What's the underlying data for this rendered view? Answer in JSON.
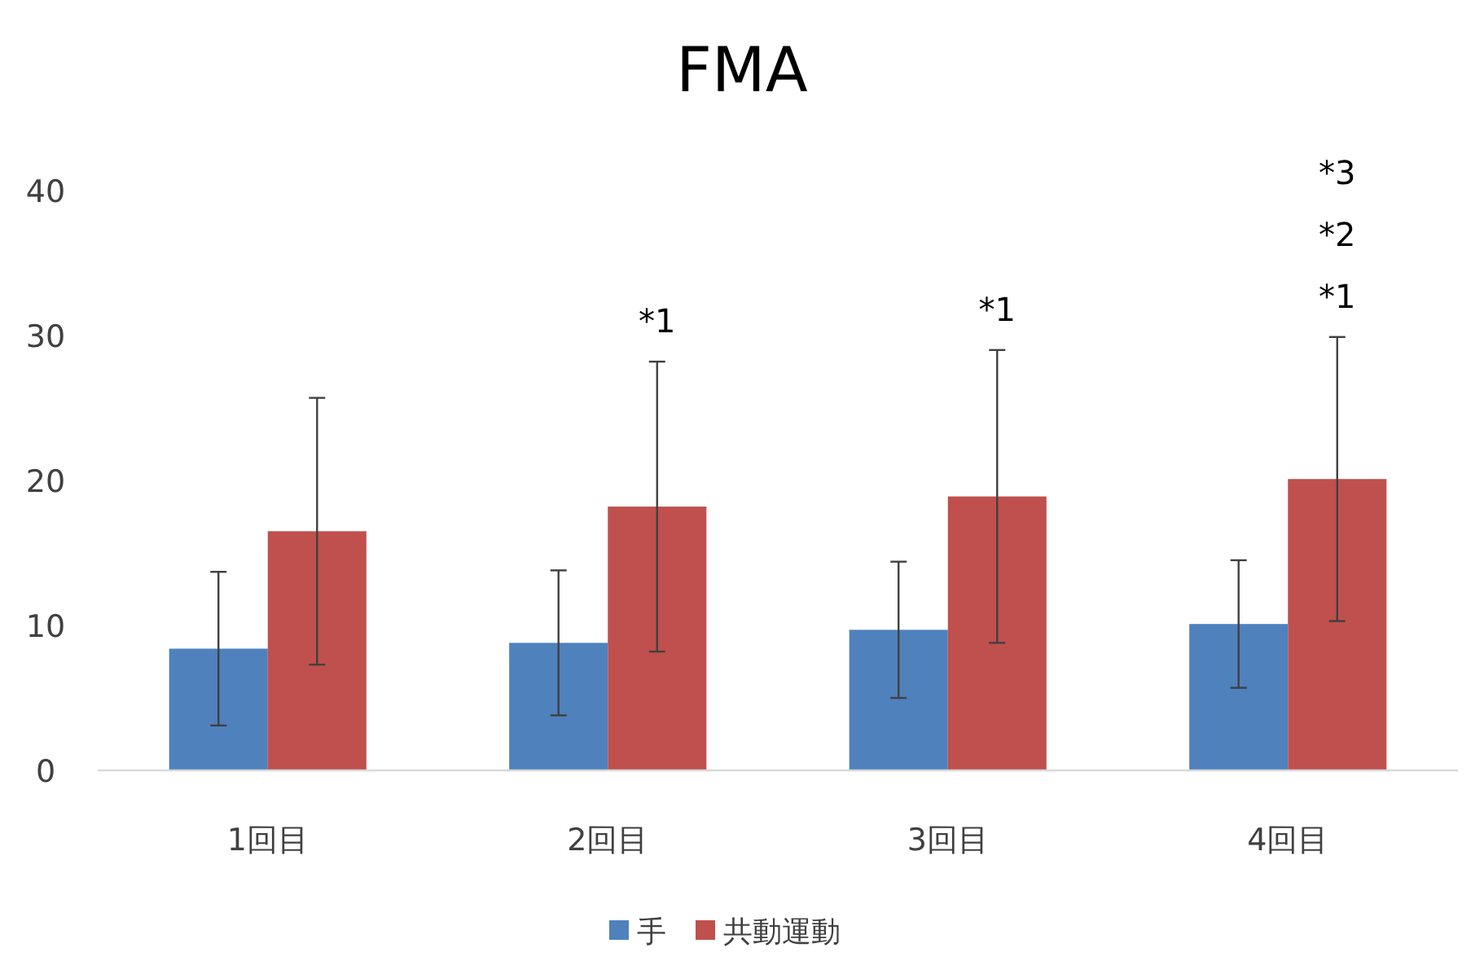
{
  "chart_data": {
    "type": "bar",
    "title": "FMA",
    "categories": [
      "1回目",
      "2回目",
      "3回目",
      "4回目"
    ],
    "series": [
      {
        "name": "手",
        "color": "#4f81bd",
        "values": [
          8.4,
          8.8,
          9.7,
          10.1
        ],
        "errors": [
          5.3,
          5.0,
          4.7,
          4.4
        ]
      },
      {
        "name": "共動運動",
        "color": "#c0504d",
        "values": [
          16.5,
          18.2,
          18.9,
          20.1
        ],
        "errors": [
          9.2,
          10.0,
          10.1,
          9.8
        ]
      }
    ],
    "ylim": [
      0,
      40
    ],
    "yticks": [
      0,
      10,
      20,
      30,
      40
    ],
    "grid": false,
    "legend": "bottom",
    "annotations": [
      "*1",
      "*1",
      "*1",
      "*2",
      "*3"
    ]
  }
}
